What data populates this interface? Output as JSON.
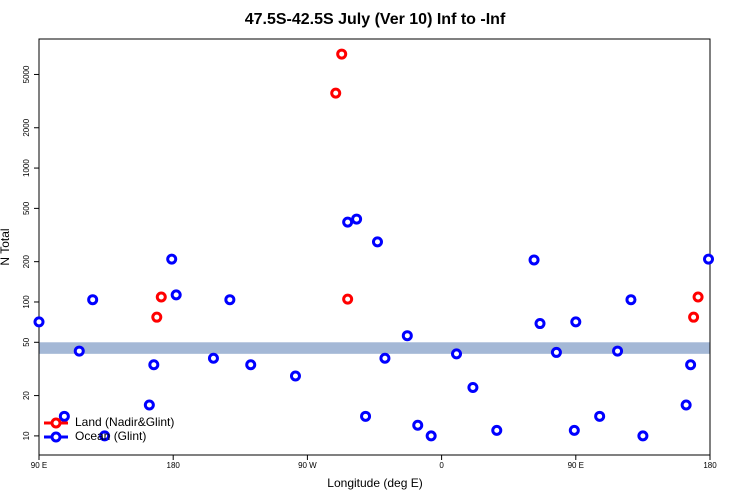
{
  "chart_data": {
    "type": "scatter",
    "title": "47.5S-42.5S July (Ver 10)   Inf to -Inf",
    "x_label": "Longitude (deg E)",
    "y_label": "N Total",
    "log_y": true,
    "xlim": [
      90,
      540
    ],
    "xticks": [
      {
        "value": 90,
        "label": "90 E"
      },
      180,
      {
        "value": 270,
        "label": "90 W"
      },
      {
        "value": 360,
        "label": "0"
      },
      {
        "value": 450,
        "label": "90 E"
      },
      {
        "value": 540,
        "label": "180"
      }
    ],
    "ylim": [
      7.2,
      9200
    ],
    "yticks": [
      10,
      20,
      50,
      100,
      200,
      500,
      1000,
      2000,
      5000
    ],
    "shaded_band": [
      41,
      50
    ],
    "band_color": "#a4b8d6",
    "legend": "bottom-left",
    "series": [
      {
        "name": "Land (Nadir&Glint)",
        "color": "#ff0000",
        "x": [
          169,
          172,
          289,
          293,
          297,
          529,
          532
        ],
        "values": [
          77,
          109,
          3630,
          7100,
          105,
          77,
          109
        ]
      },
      {
        "name": "Ocean (Glint)",
        "color": "#0000ff",
        "x": [
          90,
          107,
          117,
          126,
          134,
          164,
          167,
          179,
          182,
          207,
          218,
          232,
          262,
          297,
          303,
          309,
          317,
          322,
          337,
          344,
          353,
          370,
          381,
          397,
          422,
          426,
          437,
          449,
          450,
          466,
          478,
          487,
          495,
          524,
          527,
          539
        ],
        "values": [
          71,
          14,
          43,
          104,
          10,
          17,
          34,
          209,
          113,
          38,
          104,
          34,
          28,
          395,
          416,
          14,
          281,
          38,
          56,
          12,
          10,
          41,
          23,
          11,
          206,
          69,
          42,
          11,
          71,
          14,
          43,
          104,
          10,
          17,
          34,
          209
        ]
      }
    ]
  }
}
